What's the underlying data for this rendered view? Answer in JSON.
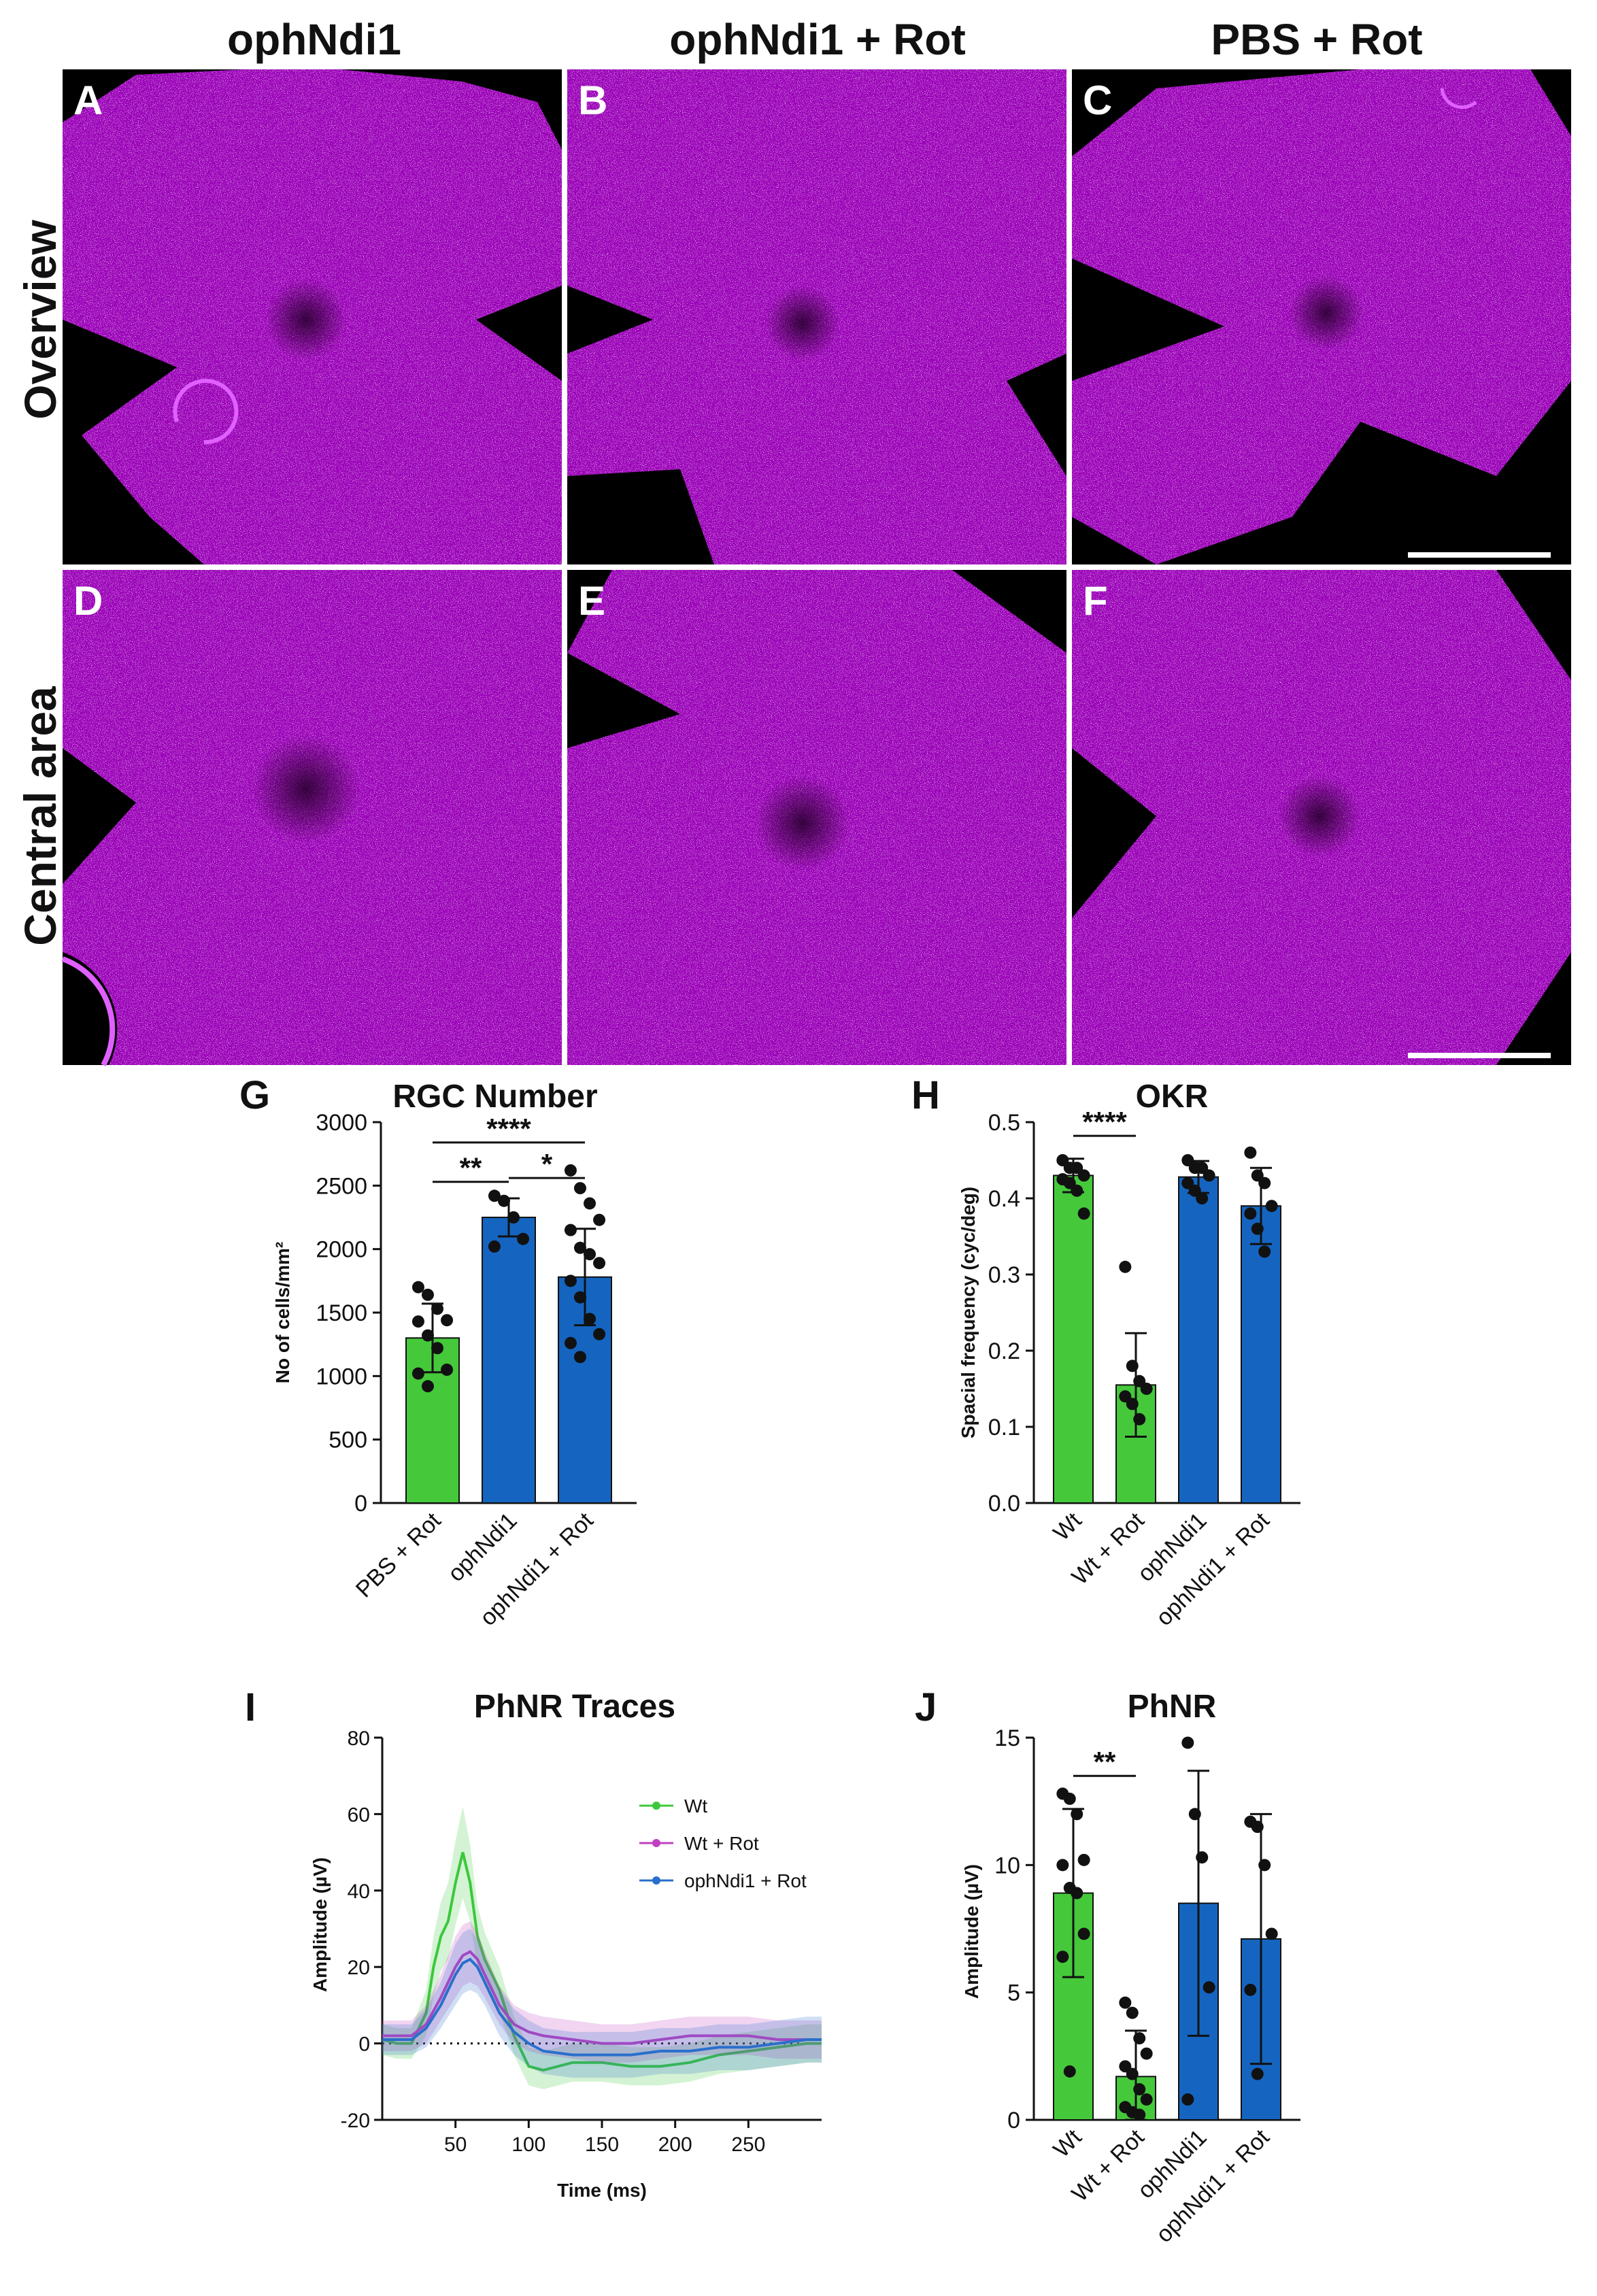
{
  "column_titles": [
    "ophNdi1",
    "ophNdi1 + Rot",
    "PBS + Rot"
  ],
  "row_titles": [
    "Overview",
    "Central area"
  ],
  "panel_letters": [
    "A",
    "B",
    "C",
    "D",
    "E",
    "F"
  ],
  "figure_letters": {
    "G": "G",
    "H": "H",
    "I": "I",
    "J": "J"
  },
  "colors": {
    "green": "#45c93b",
    "blue": "#1565c0",
    "magenta": "#b000c8",
    "wt_line": "#3cc83c",
    "rot_line": "#c040c0",
    "oph_line": "#2a6fcb"
  },
  "chart_data": [
    {
      "type": "bar",
      "id": "G",
      "title": "RGC Number",
      "ylabel": "No of cells/mm²",
      "ylim": [
        0,
        3000
      ],
      "yticks": [
        0,
        500,
        1000,
        1500,
        2000,
        2500,
        3000
      ],
      "categories": [
        "PBS + Rot",
        "ophNdi1",
        "ophNdi1 + Rot"
      ],
      "values": [
        1300,
        2250,
        1780
      ],
      "errors": [
        270,
        150,
        380
      ],
      "bar_colors": [
        "#45c93b",
        "#1565c0",
        "#1565c0"
      ],
      "points": [
        [
          1700,
          1640,
          1530,
          1440,
          1430,
          1320,
          1220,
          1050,
          1020,
          920
        ],
        [
          2420,
          2380,
          2250,
          2080,
          2020
        ],
        [
          2620,
          2480,
          2360,
          2230,
          2150,
          2010,
          1960,
          1890,
          1750,
          1620,
          1450,
          1330,
          1260,
          1150
        ]
      ],
      "significance": [
        {
          "from": 0,
          "to": 2,
          "label": "****",
          "level": 2840
        },
        {
          "from": 0,
          "to": 1,
          "label": "**",
          "level": 2530
        },
        {
          "from": 1,
          "to": 2,
          "label": "*",
          "level": 2560
        }
      ]
    },
    {
      "type": "bar",
      "id": "H",
      "title": "OKR",
      "ylabel": "Spacial frequency (cyc/deg)",
      "ylim": [
        0,
        0.5
      ],
      "yticks": [
        0.0,
        0.1,
        0.2,
        0.3,
        0.4,
        0.5
      ],
      "categories": [
        "Wt",
        "Wt + Rot",
        "ophNdi1",
        "ophNdi1 + Rot"
      ],
      "values": [
        0.43,
        0.155,
        0.428,
        0.39
      ],
      "errors": [
        0.022,
        0.068,
        0.021,
        0.05
      ],
      "bar_colors": [
        "#45c93b",
        "#45c93b",
        "#1565c0",
        "#1565c0"
      ],
      "points": [
        [
          0.45,
          0.44,
          0.44,
          0.43,
          0.425,
          0.42,
          0.41,
          0.38
        ],
        [
          0.31,
          0.18,
          0.16,
          0.15,
          0.14,
          0.13,
          0.11
        ],
        [
          0.45,
          0.44,
          0.44,
          0.43,
          0.42,
          0.41,
          0.4
        ],
        [
          0.46,
          0.43,
          0.42,
          0.39,
          0.38,
          0.36,
          0.33
        ]
      ],
      "significance": [
        {
          "from": 0,
          "to": 1,
          "label": "****",
          "level": 0.482
        }
      ]
    },
    {
      "type": "line",
      "id": "I",
      "title": "PhNR Traces",
      "xlabel": "Time (ms)",
      "ylabel": "Amplitude (µV)",
      "xlim": [
        0,
        300
      ],
      "ylim": [
        -20,
        80
      ],
      "xticks": [
        50,
        100,
        150,
        200,
        250
      ],
      "yticks": [
        -20,
        0,
        20,
        40,
        60,
        80
      ],
      "series": [
        {
          "name": "Wt",
          "color": "#3cc83c",
          "x": [
            0,
            10,
            20,
            30,
            35,
            40,
            45,
            50,
            55,
            60,
            65,
            70,
            80,
            90,
            100,
            110,
            120,
            130,
            150,
            170,
            190,
            210,
            230,
            250,
            270,
            290,
            300
          ],
          "y": [
            1,
            0,
            0,
            8,
            20,
            28,
            32,
            42,
            50,
            42,
            28,
            22,
            14,
            2,
            -6,
            -7,
            -6,
            -5,
            -5,
            -6,
            -6,
            -5,
            -3,
            -2,
            -1,
            0,
            0
          ],
          "err": [
            4,
            4,
            4,
            6,
            8,
            9,
            10,
            11,
            12,
            10,
            8,
            7,
            6,
            5,
            5,
            5,
            5,
            5,
            5,
            5,
            5,
            5,
            5,
            5,
            5,
            5,
            5
          ]
        },
        {
          "name": "Wt + Rot",
          "color": "#c040c0",
          "x": [
            0,
            10,
            20,
            30,
            40,
            45,
            50,
            55,
            60,
            65,
            70,
            80,
            90,
            100,
            110,
            130,
            150,
            170,
            190,
            210,
            230,
            250,
            270,
            290,
            300
          ],
          "y": [
            2,
            2,
            2,
            5,
            12,
            16,
            20,
            23,
            24,
            22,
            18,
            10,
            5,
            3,
            2,
            1,
            0,
            0,
            1,
            2,
            2,
            2,
            1,
            1,
            1
          ],
          "err": [
            4,
            4,
            4,
            5,
            6,
            7,
            8,
            8,
            8,
            7,
            6,
            5,
            5,
            5,
            5,
            5,
            5,
            5,
            5,
            5,
            5,
            5,
            5,
            5,
            5
          ]
        },
        {
          "name": "ophNdi1 + Rot",
          "color": "#2a6fcb",
          "x": [
            0,
            10,
            20,
            30,
            40,
            45,
            50,
            55,
            60,
            65,
            70,
            80,
            90,
            100,
            110,
            130,
            150,
            170,
            190,
            210,
            230,
            250,
            270,
            290,
            300
          ],
          "y": [
            1,
            1,
            1,
            4,
            10,
            14,
            18,
            21,
            22,
            20,
            16,
            8,
            3,
            0,
            -2,
            -3,
            -3,
            -3,
            -2,
            -2,
            -1,
            -1,
            0,
            1,
            1
          ],
          "err": [
            4,
            4,
            4,
            5,
            6,
            7,
            8,
            8,
            8,
            7,
            6,
            6,
            6,
            6,
            6,
            6,
            6,
            6,
            6,
            6,
            6,
            6,
            6,
            6,
            6
          ]
        }
      ]
    },
    {
      "type": "bar",
      "id": "J",
      "title": "PhNR",
      "ylabel": "Amplitude (µV)",
      "ylim": [
        0,
        15
      ],
      "yticks": [
        0,
        5,
        10,
        15
      ],
      "categories": [
        "Wt",
        "Wt + Rot",
        "ophNdi1",
        "ophNdi1 + Rot"
      ],
      "values": [
        8.9,
        1.7,
        8.5,
        7.1
      ],
      "errors": [
        3.3,
        1.8,
        5.2,
        4.9
      ],
      "bar_colors": [
        "#45c93b",
        "#45c93b",
        "#1565c0",
        "#1565c0"
      ],
      "points": [
        [
          12.8,
          12.6,
          12.0,
          10.2,
          10.0,
          9.1,
          8.9,
          7.3,
          6.4,
          1.9
        ],
        [
          4.6,
          4.2,
          3.2,
          2.6,
          2.1,
          1.8,
          1.2,
          0.8,
          0.5,
          0.3,
          0.2
        ],
        [
          14.8,
          12.0,
          10.3,
          5.2,
          0.8
        ],
        [
          11.7,
          11.5,
          10.0,
          7.3,
          5.1,
          1.8
        ]
      ],
      "significance": [
        {
          "from": 0,
          "to": 1,
          "label": "**",
          "level": 13.5
        }
      ]
    }
  ]
}
